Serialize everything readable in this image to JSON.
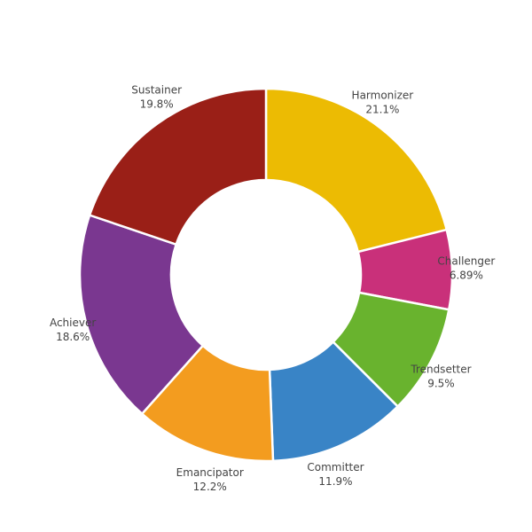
{
  "chart_data": {
    "type": "donut",
    "categories": [
      "Harmonizer",
      "Challenger",
      "Trendsetter",
      "Committer",
      "Emancipator",
      "Achiever",
      "Sustainer"
    ],
    "values": [
      21.1,
      6.89,
      9.5,
      11.9,
      12.2,
      18.6,
      19.8
    ],
    "value_labels": [
      "21.1%",
      "6.89%",
      "9.5%",
      "11.9%",
      "12.2%",
      "18.6%",
      "19.8%"
    ],
    "colors": [
      "#ecbb03",
      "#c9307a",
      "#69b32e",
      "#3984c6",
      "#f39c1f",
      "#7a3790",
      "#9a1f17"
    ]
  }
}
